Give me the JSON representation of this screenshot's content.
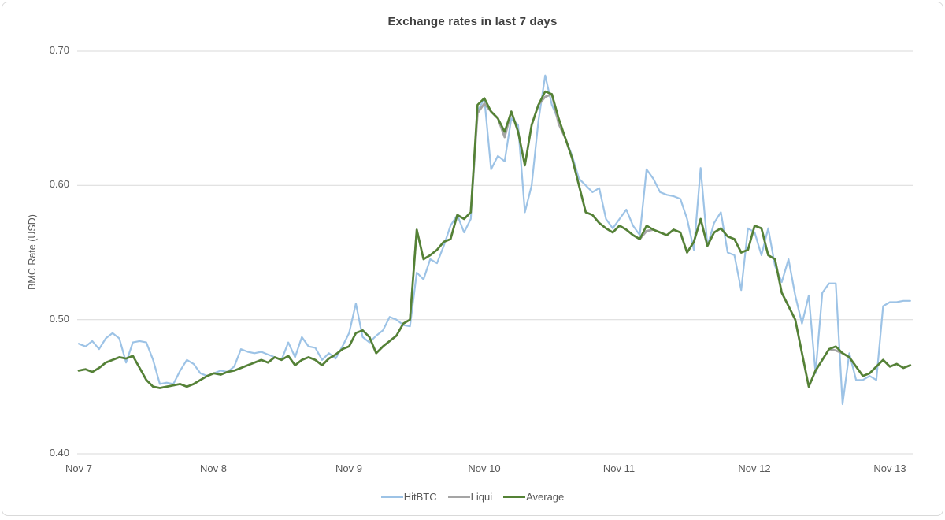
{
  "chart": {
    "title": "Exchange rates in last 7 days",
    "y_axis_label": "BMC Rate (USD)",
    "y_tick_labels": [
      "0.70",
      "0.60",
      "0.50",
      "0.40"
    ],
    "x_tick_labels": [
      "Nov 7",
      "Nov 8",
      "Nov 9",
      "Nov 10",
      "Nov 11",
      "Nov 12",
      "Nov 13"
    ]
  },
  "chart_data": {
    "type": "line",
    "title": "Exchange rates in last 7 days",
    "xlabel": "",
    "ylabel": "BMC Rate (USD)",
    "ylim": [
      0.4,
      0.7
    ],
    "y_ticks": [
      0.7,
      0.6,
      0.5,
      0.4
    ],
    "x_tick_labels": [
      "Nov 7",
      "Nov 8",
      "Nov 9",
      "Nov 10",
      "Nov 11",
      "Nov 12",
      "Nov 13"
    ],
    "x_start_day": 0,
    "x_step_days": 0.05,
    "grid": "horizontal",
    "legend_position": "bottom",
    "colors": {
      "grid": "#d9d9d9",
      "text": "#595959",
      "title": "#404040"
    },
    "series": [
      {
        "name": "HitBTC",
        "color": "#9DC3E6",
        "values": [
          0.482,
          0.48,
          0.484,
          0.478,
          0.486,
          0.49,
          0.486,
          0.468,
          0.483,
          0.484,
          0.483,
          0.47,
          0.452,
          0.453,
          0.452,
          0.462,
          0.47,
          0.467,
          0.46,
          0.458,
          0.46,
          0.462,
          0.461,
          0.465,
          0.478,
          0.476,
          0.475,
          0.476,
          0.474,
          0.472,
          0.47,
          0.483,
          0.472,
          0.487,
          0.48,
          0.479,
          0.47,
          0.475,
          0.471,
          0.48,
          0.49,
          0.512,
          0.487,
          0.483,
          0.488,
          0.492,
          0.502,
          0.5,
          0.496,
          0.495,
          0.535,
          0.53,
          0.545,
          0.542,
          0.555,
          0.57,
          0.578,
          0.565,
          0.575,
          0.655,
          0.665,
          0.612,
          0.622,
          0.618,
          0.65,
          0.645,
          0.58,
          0.6,
          0.648,
          0.682,
          0.66,
          0.648,
          0.635,
          0.622,
          0.605,
          0.6,
          0.595,
          0.598,
          0.575,
          0.568,
          0.575,
          0.582,
          0.57,
          0.563,
          0.612,
          0.605,
          0.595,
          0.593,
          0.592,
          0.59,
          0.575,
          0.552,
          0.613,
          0.555,
          0.572,
          0.58,
          0.55,
          0.548,
          0.522,
          0.568,
          0.565,
          0.548,
          0.568,
          0.54,
          0.528,
          0.545,
          0.518,
          0.497,
          0.518,
          0.46,
          0.52,
          0.527,
          0.527,
          0.437,
          0.475,
          0.455,
          0.455,
          0.458,
          0.455,
          0.51,
          0.513,
          0.513,
          0.514,
          0.514
        ]
      },
      {
        "name": "Liqui",
        "color": "#A5A5A5",
        "values": [
          0.462,
          0.463,
          0.461,
          0.464,
          0.468,
          0.47,
          0.472,
          0.471,
          0.473,
          0.464,
          0.455,
          0.45,
          0.449,
          0.45,
          0.451,
          0.452,
          0.45,
          0.452,
          0.455,
          0.458,
          0.46,
          0.459,
          0.461,
          0.462,
          0.464,
          0.466,
          0.468,
          0.47,
          0.468,
          0.472,
          0.47,
          0.473,
          0.466,
          0.47,
          0.472,
          0.47,
          0.466,
          0.471,
          0.474,
          0.478,
          0.48,
          0.49,
          0.492,
          0.487,
          0.475,
          0.48,
          0.484,
          0.488,
          0.497,
          0.5,
          0.567,
          0.545,
          0.548,
          0.552,
          0.558,
          0.56,
          0.578,
          0.575,
          0.58,
          0.654,
          0.661,
          0.655,
          0.65,
          0.636,
          0.655,
          0.64,
          0.615,
          0.645,
          0.66,
          0.666,
          0.668,
          0.646,
          0.635,
          0.62,
          0.6,
          0.58,
          0.578,
          0.572,
          0.568,
          0.565,
          0.57,
          0.567,
          0.563,
          0.56,
          0.566,
          0.567,
          0.565,
          0.563,
          0.567,
          0.565,
          0.55,
          0.558,
          0.575,
          0.555,
          0.565,
          0.568,
          0.562,
          0.56,
          0.55,
          0.552,
          0.57,
          0.568,
          0.548,
          0.545,
          0.52,
          0.51,
          0.5,
          0.475,
          0.45,
          0.462,
          0.47,
          0.478,
          0.477,
          0.475,
          0.472,
          0.465,
          0.458,
          0.46,
          0.465,
          0.47,
          0.465,
          0.467,
          0.464,
          0.466
        ]
      },
      {
        "name": "Average",
        "color": "#548235",
        "values": [
          0.462,
          0.463,
          0.461,
          0.464,
          0.468,
          0.47,
          0.472,
          0.471,
          0.473,
          0.464,
          0.455,
          0.45,
          0.449,
          0.45,
          0.451,
          0.452,
          0.45,
          0.452,
          0.455,
          0.458,
          0.46,
          0.459,
          0.461,
          0.462,
          0.464,
          0.466,
          0.468,
          0.47,
          0.468,
          0.472,
          0.47,
          0.473,
          0.466,
          0.47,
          0.472,
          0.47,
          0.466,
          0.471,
          0.474,
          0.478,
          0.48,
          0.49,
          0.492,
          0.487,
          0.475,
          0.48,
          0.484,
          0.488,
          0.497,
          0.5,
          0.567,
          0.545,
          0.548,
          0.552,
          0.558,
          0.56,
          0.578,
          0.575,
          0.58,
          0.66,
          0.665,
          0.655,
          0.65,
          0.64,
          0.655,
          0.64,
          0.615,
          0.645,
          0.66,
          0.67,
          0.668,
          0.65,
          0.635,
          0.62,
          0.6,
          0.58,
          0.578,
          0.572,
          0.568,
          0.565,
          0.57,
          0.567,
          0.563,
          0.56,
          0.57,
          0.567,
          0.565,
          0.563,
          0.567,
          0.565,
          0.55,
          0.558,
          0.575,
          0.555,
          0.565,
          0.568,
          0.562,
          0.56,
          0.55,
          0.552,
          0.57,
          0.568,
          0.548,
          0.545,
          0.52,
          0.51,
          0.5,
          0.475,
          0.45,
          0.462,
          0.47,
          0.478,
          0.48,
          0.475,
          0.472,
          0.465,
          0.458,
          0.46,
          0.465,
          0.47,
          0.465,
          0.467,
          0.464,
          0.466
        ]
      }
    ]
  }
}
